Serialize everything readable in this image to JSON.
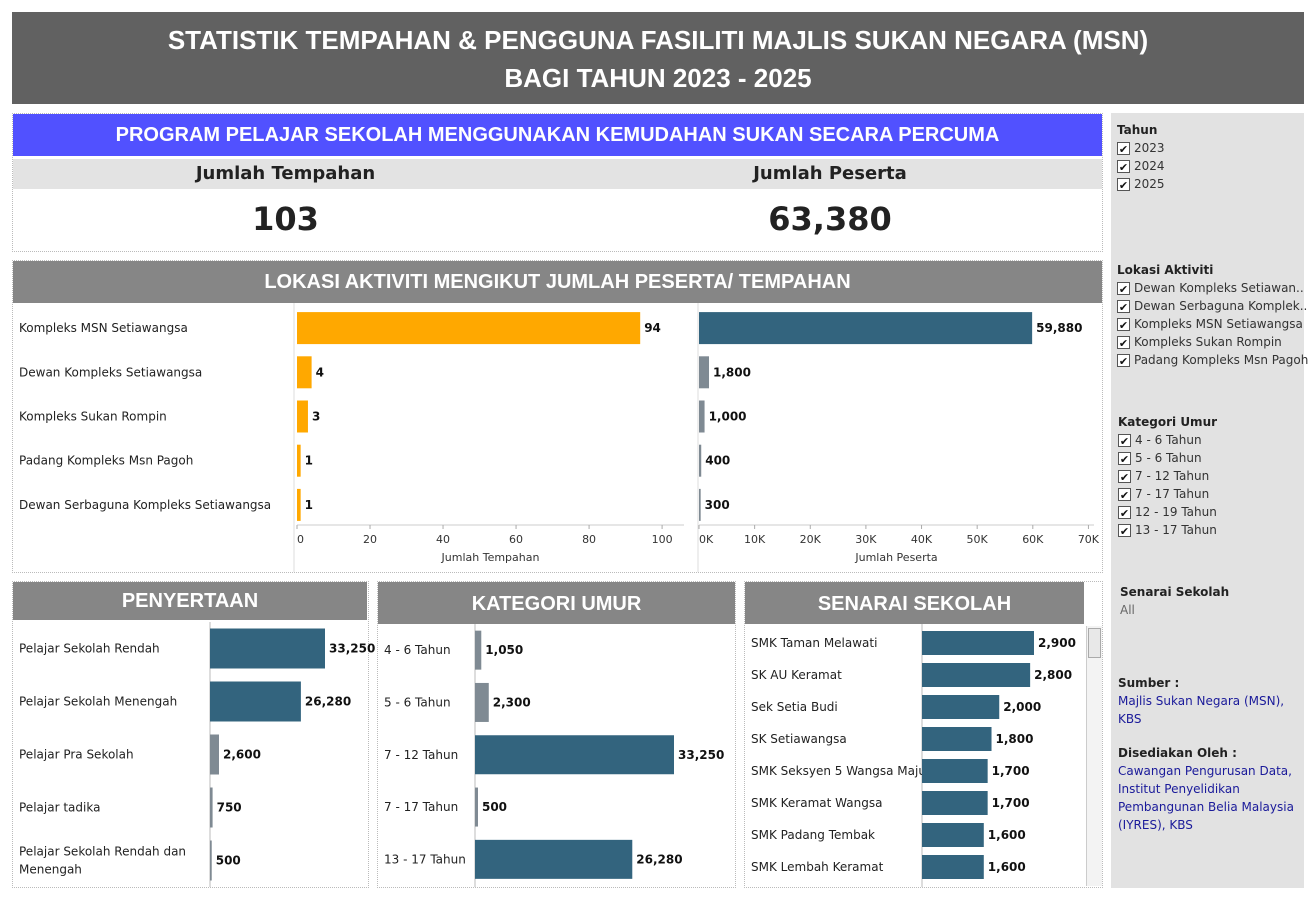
{
  "header": {
    "line1": "STATISTIK TEMPAHAN & PENGGUNA FASILITI MAJLIS SUKAN NEGARA (MSN)",
    "line2": "BAGI TAHUN 2023 - 2025"
  },
  "program": {
    "banner": "PROGRAM PELAJAR SEKOLAH MENGGUNAKAN KEMUDAHAN SUKAN SECARA PERCUMA",
    "tempahan_label": "Jumlah Tempahan",
    "tempahan_value": "103",
    "peserta_label": "Jumlah Peserta",
    "peserta_value": "63,380"
  },
  "colors": {
    "orange": "#FFA800",
    "teal": "#33647E",
    "grey_bar": "#7F8A93",
    "banner_blue": "#5151FF",
    "banner_grey": "#868686",
    "header_grey": "#616161"
  },
  "chart_data": [
    {
      "type": "bar",
      "title": "LOKASI AKTIVITI MENGIKUT JUMLAH PESERTA/ TEMPAHAN",
      "orientation": "horizontal",
      "categories": [
        "Kompleks MSN Setiawangsa",
        "Dewan Kompleks Setiawangsa",
        "Kompleks Sukan Rompin",
        "Padang Kompleks Msn Pagoh",
        "Dewan Serbaguna Kompleks Setiawangsa"
      ],
      "series": [
        {
          "name": "Jumlah Tempahan",
          "values": [
            94,
            4,
            3,
            1,
            1
          ],
          "labels": [
            "94",
            "4",
            "3",
            "1",
            "1"
          ],
          "xlabel": "Jumlah Tempahan",
          "xlim": [
            0,
            106
          ],
          "ticks": [
            0,
            20,
            40,
            60,
            80,
            100
          ],
          "tick_labels": [
            "0",
            "20",
            "40",
            "60",
            "80",
            "100"
          ]
        },
        {
          "name": "Jumlah Peserta",
          "values": [
            59880,
            1800,
            1000,
            400,
            300
          ],
          "labels": [
            "59,880",
            "1,800",
            "1,000",
            "400",
            "300"
          ],
          "xlabel": "Jumlah Peserta",
          "xlim": [
            0,
            71000
          ],
          "ticks": [
            0,
            10000,
            20000,
            30000,
            40000,
            50000,
            60000,
            70000
          ],
          "tick_labels": [
            "0K",
            "10K",
            "20K",
            "30K",
            "40K",
            "50K",
            "60K",
            "70K"
          ]
        }
      ]
    },
    {
      "type": "bar",
      "title": "PENYERTAAN",
      "orientation": "horizontal",
      "categories": [
        "Pelajar Sekolah Rendah",
        "Pelajar Sekolah Menengah",
        "Pelajar Pra Sekolah",
        "Pelajar tadika",
        "Pelajar Sekolah Rendah dan Menengah"
      ],
      "values": [
        33250,
        26280,
        2600,
        750,
        500
      ],
      "labels": [
        "33,250",
        "26,280",
        "2,600",
        "750",
        "500"
      ],
      "xlim": [
        0,
        38000
      ]
    },
    {
      "type": "bar",
      "title": "KATEGORI UMUR",
      "orientation": "horizontal",
      "categories": [
        "4 - 6 Tahun",
        "5 - 6 Tahun",
        "7 - 12 Tahun",
        "7 - 17 Tahun",
        "13 - 17 Tahun"
      ],
      "values": [
        1050,
        2300,
        33250,
        500,
        26280
      ],
      "labels": [
        "1,050",
        "2,300",
        "33,250",
        "500",
        "26,280"
      ],
      "xlim": [
        0,
        38000
      ]
    },
    {
      "type": "bar",
      "title": "SENARAI SEKOLAH",
      "orientation": "horizontal",
      "categories": [
        "SMK Taman Melawati",
        "SK AU Keramat",
        "Sek Setia Budi",
        "SK Setiawangsa",
        "SMK Seksyen 5 Wangsa Maju",
        "SMK Keramat Wangsa",
        "SMK Padang Tembak",
        "SMK Lembah Keramat"
      ],
      "values": [
        2900,
        2800,
        2000,
        1800,
        1700,
        1700,
        1600,
        1600
      ],
      "labels": [
        "2,900",
        "2,800",
        "2,000",
        "1,800",
        "1,700",
        "1,700",
        "1,600",
        "1,600"
      ],
      "xlim": [
        0,
        3450
      ]
    }
  ],
  "filters": {
    "tahun": {
      "title": "Tahun",
      "items": [
        "2023",
        "2024",
        "2025"
      ]
    },
    "lokasi": {
      "title": "Lokasi Aktiviti",
      "items": [
        "Dewan Kompleks Setiawan..",
        "Dewan Serbaguna Komplek..",
        "Kompleks MSN Setiawangsa",
        "Kompleks Sukan Rompin",
        "Padang Kompleks Msn Pagoh"
      ]
    },
    "umur": {
      "title": "Kategori Umur",
      "items": [
        "4 - 6 Tahun",
        "5 - 6 Tahun",
        "7 - 12 Tahun",
        "7 - 17 Tahun",
        "12 - 19 Tahun",
        "13 - 17 Tahun"
      ]
    },
    "sekolah": {
      "title": "Senarai Sekolah",
      "value": "All"
    },
    "check_glyph": "✔"
  },
  "source": {
    "label": "Sumber :",
    "value": "Majlis Sukan Negara (MSN), KBS",
    "prepared_label": "Disediakan Oleh :",
    "prepared_value": "Cawangan Pengurusan Data, Institut Penyelidikan Pembangunan Belia Malaysia (IYRES), KBS"
  }
}
